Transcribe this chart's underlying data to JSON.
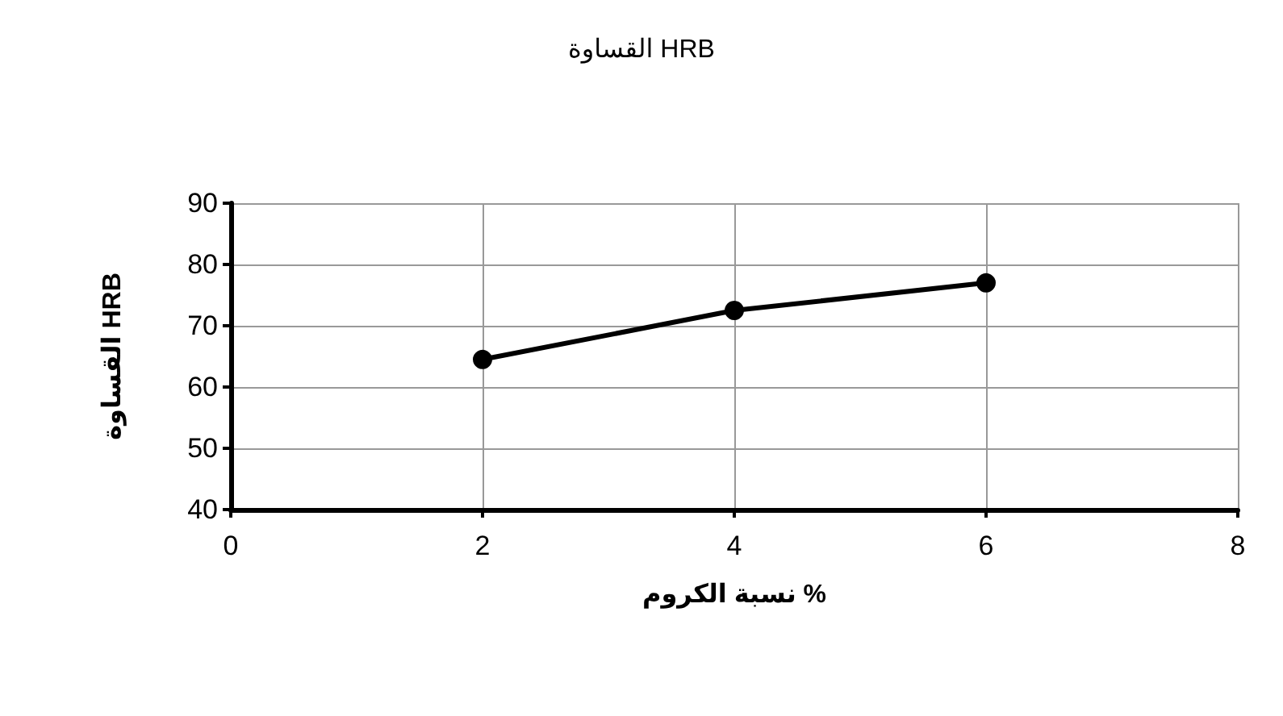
{
  "chart_data": {
    "type": "line",
    "title": "القساوة HRB",
    "xlabel": "نسبة الكروم %",
    "ylabel": "القساوة HRB",
    "x": [
      2,
      4,
      6
    ],
    "series": [
      {
        "color": "#000000",
        "values": [
          64.5,
          72.5,
          77
        ]
      }
    ],
    "xlim": [
      0,
      8
    ],
    "xticks": [
      0,
      2,
      4,
      6,
      8
    ],
    "ylim": [
      40,
      90
    ],
    "yticks": [
      40,
      50,
      60,
      70,
      80,
      90
    ],
    "grid": true,
    "marker": "circle",
    "line_style": "solid"
  }
}
